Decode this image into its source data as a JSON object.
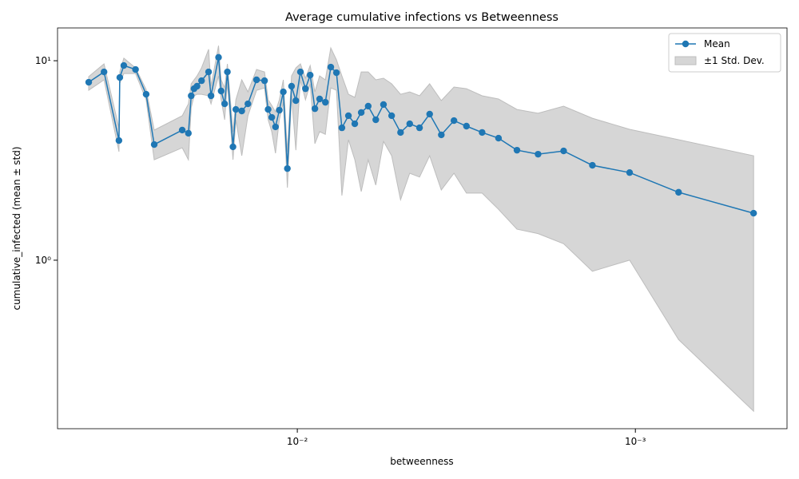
{
  "chart_data": {
    "type": "line",
    "title": "Average cumulative infections vs Betweenness",
    "x_label": "betweenness",
    "y_label": "cumulative_infected (mean ± std)",
    "xscale": "log",
    "yscale": "log",
    "x_inverted": true,
    "xlim": [
      0.0512,
      0.000356
    ],
    "ylim": [
      0.143,
      14.6
    ],
    "xticks": [
      {
        "value": 0.01,
        "label": "10⁻²"
      },
      {
        "value": 0.001,
        "label": "10⁻³"
      }
    ],
    "yticks": [
      {
        "value": 1,
        "label": "10⁰"
      },
      {
        "value": 10,
        "label": "10¹"
      }
    ],
    "legend": "upper right",
    "x": [
      0.0414,
      0.0373,
      0.0337,
      0.0335,
      0.0326,
      0.0301,
      0.028,
      0.0265,
      0.0219,
      0.021,
      0.0206,
      0.0202,
      0.0198,
      0.0192,
      0.0183,
      0.018,
      0.0171,
      0.0168,
      0.0164,
      0.0161,
      0.0155,
      0.0152,
      0.0146,
      0.014,
      0.0132,
      0.0125,
      0.0122,
      0.0119,
      0.0116,
      0.0113,
      0.011,
      0.0107,
      0.0104,
      0.0101,
      0.00979,
      0.00946,
      0.00916,
      0.00887,
      0.00859,
      0.00826,
      0.00796,
      0.00766,
      0.00738,
      0.00706,
      0.00676,
      0.00647,
      0.00617,
      0.00586,
      0.00556,
      0.00526,
      0.00495,
      0.00465,
      0.00435,
      0.00406,
      0.00375,
      0.00344,
      0.00316,
      0.00284,
      0.00254,
      0.00224,
      0.00194,
      0.00163,
      0.00134,
      0.00104,
      0.000745,
      0.000447
    ],
    "series": [
      {
        "name": "Mean",
        "color": "#1f77b4",
        "values": [
          7.8,
          8.79,
          3.98,
          8.24,
          9.46,
          9.04,
          6.79,
          3.8,
          4.49,
          4.33,
          6.67,
          7.24,
          7.45,
          7.94,
          8.79,
          6.67,
          10.4,
          7.05,
          6.08,
          8.79,
          3.7,
          5.7,
          5.6,
          6.08,
          8.02,
          7.94,
          5.7,
          5.2,
          4.66,
          5.65,
          6.98,
          2.88,
          7.45,
          6.31,
          8.79,
          7.24,
          8.47,
          5.75,
          6.43,
          6.19,
          9.29,
          8.71,
          4.61,
          5.3,
          4.83,
          5.5,
          5.92,
          5.06,
          6.03,
          5.3,
          4.37,
          4.83,
          4.61,
          5.4,
          4.25,
          5.01,
          4.7,
          4.37,
          4.09,
          3.56,
          3.4,
          3.53,
          2.99,
          2.75,
          2.19,
          1.72
        ]
      },
      {
        "name": "±1 Std. Dev.",
        "color": "#d6d6d6",
        "type": "band",
        "upper": [
          8.32,
          9.64,
          4.61,
          8.8,
          10.3,
          9.2,
          7.18,
          4.49,
          5.3,
          6.08,
          7.66,
          8.02,
          8.39,
          9.2,
          11.4,
          7.45,
          11.9,
          8.02,
          7.31,
          9.64,
          4.41,
          6.37,
          8.02,
          6.98,
          9.04,
          8.79,
          6.37,
          5.97,
          5.54,
          6.37,
          8.02,
          3.5,
          8.39,
          9.2,
          9.64,
          8.17,
          9.46,
          6.98,
          8.39,
          8.02,
          11.6,
          10.1,
          8.39,
          6.79,
          6.55,
          8.79,
          8.79,
          8.02,
          8.17,
          7.66,
          6.79,
          6.98,
          6.67,
          7.66,
          6.31,
          7.38,
          7.24,
          6.67,
          6.43,
          5.7,
          5.45,
          5.92,
          5.15,
          4.53,
          4.02,
          3.34
        ],
        "lower": [
          7.11,
          8.02,
          3.5,
          7.7,
          8.63,
          8.63,
          6.37,
          3.19,
          3.66,
          3.19,
          5.81,
          6.67,
          6.79,
          6.79,
          6.67,
          6.08,
          8.39,
          6.37,
          5.06,
          7.8,
          3.19,
          5.06,
          3.34,
          5.3,
          7.11,
          7.31,
          5.06,
          4.41,
          3.44,
          5.06,
          6.19,
          2.31,
          6.67,
          3.56,
          8.02,
          6.37,
          7.66,
          3.84,
          4.41,
          4.28,
          7.31,
          7.11,
          2.11,
          4.02,
          3.19,
          2.21,
          3.19,
          2.38,
          3.94,
          3.34,
          2.01,
          2.73,
          2.61,
          3.34,
          2.25,
          2.73,
          2.17,
          2.17,
          1.8,
          1.43,
          1.36,
          1.21,
          0.88,
          1.0,
          0.4,
          0.175
        ]
      }
    ]
  }
}
